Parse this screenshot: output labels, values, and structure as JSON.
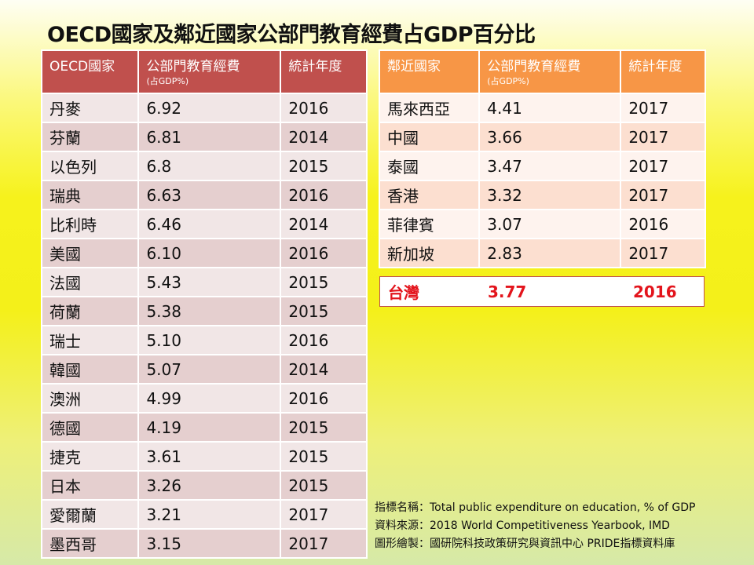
{
  "title": "OECD國家及鄰近國家公部門教育經費占GDP百分比",
  "oecd_table": {
    "headers": [
      "OECD國家",
      "公部門教育經費",
      "(占GDP%)",
      "統計年度"
    ],
    "rows": [
      [
        "丹麥",
        "6.92",
        "2016"
      ],
      [
        "芬蘭",
        "6.81",
        "2014"
      ],
      [
        "以色列",
        "6.8",
        "2015"
      ],
      [
        "瑞典",
        "6.63",
        "2016"
      ],
      [
        "比利時",
        "6.46",
        "2014"
      ],
      [
        "美國",
        "6.10",
        "2016"
      ],
      [
        "法國",
        "5.43",
        "2015"
      ],
      [
        "荷蘭",
        "5.38",
        "2015"
      ],
      [
        "瑞士",
        "5.10",
        "2016"
      ],
      [
        "韓國",
        "5.07",
        "2014"
      ],
      [
        "澳洲",
        "4.99",
        "2016"
      ],
      [
        "德國",
        "4.19",
        "2015"
      ],
      [
        "捷克",
        "3.61",
        "2015"
      ],
      [
        "日本",
        "3.26",
        "2015"
      ],
      [
        "愛爾蘭",
        "3.21",
        "2017"
      ],
      [
        "墨西哥",
        "3.15",
        "2017"
      ]
    ]
  },
  "neighbor_table": {
    "headers": [
      "鄰近國家",
      "公部門教育經費",
      "(占GDP%)",
      "統計年度"
    ],
    "rows": [
      [
        "馬來西亞",
        "4.41",
        "2017"
      ],
      [
        "中國",
        "3.66",
        "2017"
      ],
      [
        "泰國",
        "3.47",
        "2017"
      ],
      [
        "香港",
        "3.32",
        "2017"
      ],
      [
        "菲律賓",
        "3.07",
        "2016"
      ],
      [
        "新加坡",
        "2.83",
        "2017"
      ]
    ]
  },
  "taiwan": {
    "name": "台灣",
    "value": "3.77",
    "year": "2016"
  },
  "notes": [
    "指標名稱：Total public expenditure on education, % of GDP",
    "資料來源：2018 World Competitiveness Yearbook, IMD",
    "圖形繪製：國研院科技政策研究與資訊中心 PRIDE指標資料庫"
  ],
  "colors": {
    "oecd_header": "#c0504d",
    "neighbor_header": "#f79646",
    "taiwan_text": "#e3141c"
  }
}
